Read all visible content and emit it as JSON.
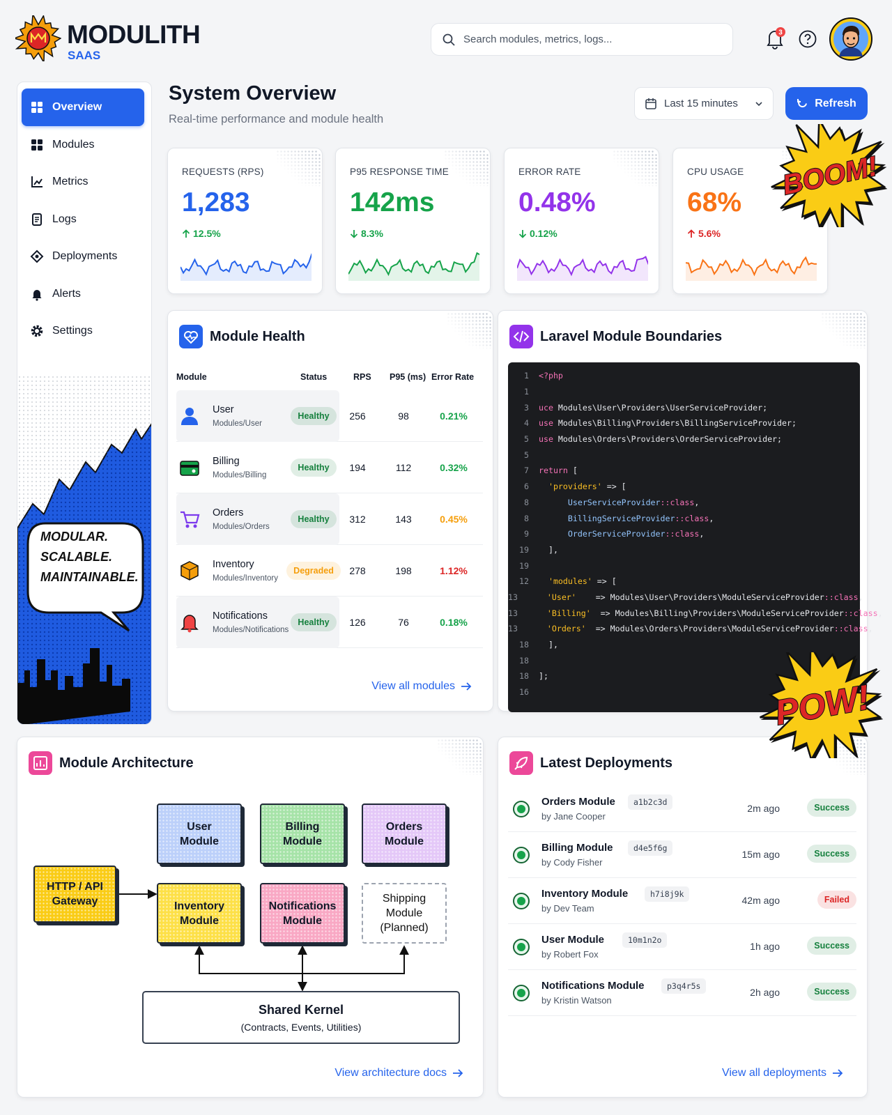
{
  "header": {
    "brand": "MODULITH",
    "brand_sub": "SAAS",
    "search_placeholder": "Search modules, metrics, logs...",
    "notification_count": 3
  },
  "sidebar": {
    "nav": [
      {
        "label": "Overview",
        "active": true
      },
      {
        "label": "Modules"
      },
      {
        "label": "Metrics"
      },
      {
        "label": "Logs"
      },
      {
        "label": "Deployments"
      },
      {
        "label": "Alerts"
      },
      {
        "label": "Settings"
      }
    ],
    "speech": [
      "MODULAR.",
      "SCALABLE.",
      "MAINTAINABLE."
    ]
  },
  "page": {
    "title": "System Overview",
    "subtitle": "Real-time performance and module health",
    "time_range": "Last 15 minutes",
    "refresh": "Refresh"
  },
  "metrics": [
    {
      "label": "REQUESTS (RPS)",
      "value": "1,283",
      "change": "12.5%",
      "direction": "up",
      "color": "#2563eb",
      "change_color": "#16a34a"
    },
    {
      "label": "P95 RESPONSE TIME",
      "value": "142ms",
      "change": "8.3%",
      "direction": "down",
      "color": "#16a34a",
      "change_color": "#16a34a"
    },
    {
      "label": "ERROR RATE",
      "value": "0.48%",
      "change": "0.12%",
      "direction": "down",
      "color": "#9333ea",
      "change_color": "#16a34a"
    },
    {
      "label": "CPU USAGE",
      "value": "68%",
      "change": "5.6%",
      "direction": "up",
      "color": "#f97316",
      "change_color": "#dc2626"
    }
  ],
  "stickers": [
    "BOOM!",
    "POW!"
  ],
  "module_health": {
    "title": "Module Health",
    "columns": [
      "Module",
      "Status",
      "RPS",
      "P95 (ms)",
      "Error Rate"
    ],
    "rows": [
      {
        "name": "User",
        "path": "Modules/User",
        "status": "Healthy",
        "status_color": "#15803d",
        "rps": "256",
        "p95": "98",
        "error_rate": "0.21%",
        "error_color": "#16a34a"
      },
      {
        "name": "Billing",
        "path": "Modules/Billing",
        "status": "Healthy",
        "status_color": "#15803d",
        "rps": "194",
        "p95": "112",
        "error_rate": "0.32%",
        "error_color": "#16a34a"
      },
      {
        "name": "Orders",
        "path": "Modules/Orders",
        "status": "Healthy",
        "status_color": "#15803d",
        "rps": "312",
        "p95": "143",
        "error_rate": "0.45%",
        "error_color": "#f59e0b"
      },
      {
        "name": "Inventory",
        "path": "Modules/Inventory",
        "status": "Degraded",
        "status_color": "#f59e0b",
        "rps": "278",
        "p95": "198",
        "error_rate": "1.12%",
        "error_color": "#dc2626"
      },
      {
        "name": "Notifications",
        "path": "Modules/Notifications",
        "status": "Healthy",
        "status_color": "#15803d",
        "rps": "126",
        "p95": "76",
        "error_rate": "0.18%",
        "error_color": "#16a34a"
      }
    ],
    "link": "View all modules"
  },
  "code": {
    "title": "Laravel Module Boundaries",
    "lines": [
      {
        "n": 1,
        "text": "<?php"
      },
      {
        "n": 1
      },
      {
        "n": 3,
        "text": "uce Modules\\User\\Providers\\UserServiceProvider;"
      },
      {
        "n": 4,
        "text": "use Modules\\Billing\\Providers\\BillingServiceProvider;"
      },
      {
        "n": 5,
        "text": "use Modules\\Orders\\Providers\\OrderServiceProvider;"
      },
      {
        "n": 5
      },
      {
        "n": 7,
        "text": "return ["
      },
      {
        "n": 6,
        "text": "  'providers' => ["
      },
      {
        "n": 8,
        "text": "      UserServiceProvider::class,"
      },
      {
        "n": 8,
        "text": "      BillingServiceProvider::class,"
      },
      {
        "n": 9,
        "text": "      OrderServiceProvider::class,"
      },
      {
        "n": 19,
        "text": "  ],"
      },
      {
        "n": 19
      },
      {
        "n": 12,
        "text": "  'modules' => ["
      },
      {
        "n": 13,
        "text": "    'User'    => Modules\\User\\Providers\\ModuleServiceProvider::class,"
      },
      {
        "n": 13,
        "text": "    'Billing'  => Modules\\Billing\\Providers\\ModuleServiceProvider::class,"
      },
      {
        "n": 13,
        "text": "    'Orders'  => Modules\\Orders\\Providers\\ModuleServiceProvider::class,"
      },
      {
        "n": 18,
        "text": "  ],"
      },
      {
        "n": 18
      },
      {
        "n": 18,
        "text": "];"
      },
      {
        "n": 16
      }
    ]
  },
  "architecture": {
    "title": "Module Architecture",
    "gateway": "HTTP / API Gateway",
    "modules": [
      {
        "label": "User Module",
        "color": "#bcd0fa"
      },
      {
        "label": "Billing Module",
        "color": "#a6e3a8"
      },
      {
        "label": "Orders Module",
        "color": "#e4c8f8"
      },
      {
        "label": "Inventory Module",
        "color": "#fde047"
      },
      {
        "label": "Notifications Module",
        "color": "#f9a8c4"
      },
      {
        "label": "Shipping Module",
        "note": "(Planned)",
        "color": "#ffffff",
        "planned": true
      }
    ],
    "kernel": "Shared Kernel",
    "kernel_note": "(Contracts, Events, Utilities)",
    "link": "View architecture docs"
  },
  "deployments": {
    "title": "Latest Deployments",
    "items": [
      {
        "name": "Orders Module",
        "author": "by Jane Cooper",
        "hash": "a1b2c3d",
        "time": "2m ago",
        "status": "Success",
        "status_color": "#15803d"
      },
      {
        "name": "Billing Module",
        "author": "by Cody Fisher",
        "hash": "d4e5f6g",
        "time": "15m ago",
        "status": "Success",
        "status_color": "#15803d"
      },
      {
        "name": "Inventory Module",
        "author": "by Dev Team",
        "hash": "h7i8j9k",
        "time": "42m ago",
        "status": "Failed",
        "status_color": "#dc2626"
      },
      {
        "name": "User Module",
        "author": "by Robert Fox",
        "hash": "10m1n2o",
        "time": "1h ago",
        "status": "Success",
        "status_color": "#15803d"
      },
      {
        "name": "Notifications Module",
        "author": "by Kristin Watson",
        "hash": "p3q4r5s",
        "time": "2h ago",
        "status": "Success",
        "status_color": "#15803d"
      }
    ],
    "link": "View all deployments"
  }
}
